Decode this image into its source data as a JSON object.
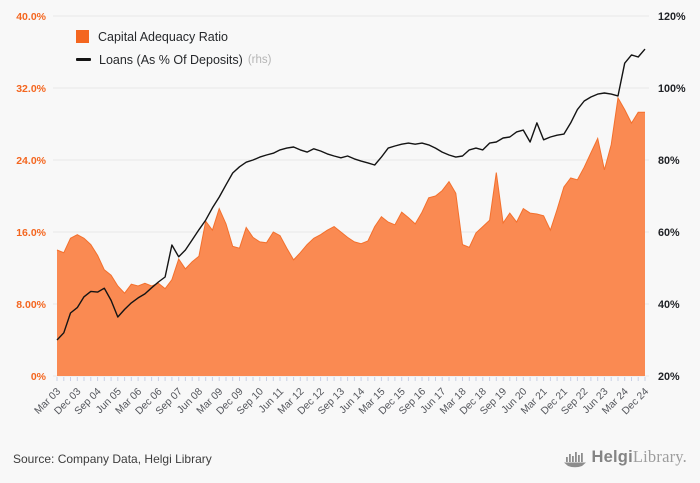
{
  "footer": {
    "source": "Source: Company Data, Helgi Library",
    "logo_bold": "Helgi",
    "logo_light": "Library."
  },
  "chart_data": {
    "type": "combo",
    "title": "",
    "x_label_every": 3,
    "legend_position": "top-left",
    "grid": true,
    "categories": [
      "Mar 03",
      "Jun 03",
      "Sep 03",
      "Dec 03",
      "Mar 04",
      "Jun 04",
      "Sep 04",
      "Dec 04",
      "Mar 05",
      "Jun 05",
      "Sep 05",
      "Dec 05",
      "Mar 06",
      "Jun 06",
      "Sep 06",
      "Dec 06",
      "Mar 07",
      "Jun 07",
      "Sep 07",
      "Dec 07",
      "Mar 08",
      "Jun 08",
      "Sep 08",
      "Dec 08",
      "Mar 09",
      "Jun 09",
      "Sep 09",
      "Dec 09",
      "Mar 10",
      "Jun 10",
      "Sep 10",
      "Dec 10",
      "Mar 11",
      "Jun 11",
      "Sep 11",
      "Dec 11",
      "Mar 12",
      "Jun 12",
      "Sep 12",
      "Dec 12",
      "Mar 13",
      "Jun 13",
      "Sep 13",
      "Dec 13",
      "Mar 14",
      "Jun 14",
      "Sep 14",
      "Dec 14",
      "Mar 15",
      "Jun 15",
      "Sep 15",
      "Dec 15",
      "Mar 16",
      "Jun 16",
      "Sep 16",
      "Dec 16",
      "Mar 17",
      "Jun 17",
      "Sep 17",
      "Dec 17",
      "Mar 18",
      "Jun 18",
      "Sep 18",
      "Dec 18",
      "Mar 19",
      "Jun 19",
      "Sep 19",
      "Dec 19",
      "Mar 20",
      "Jun 20",
      "Sep 20",
      "Dec 20",
      "Mar 21",
      "Jun 21",
      "Sep 21",
      "Dec 21",
      "Mar 22",
      "Jun 22",
      "Sep 22",
      "Dec 22",
      "Mar 23",
      "Jun 23",
      "Sep 23",
      "Dec 23",
      "Mar 24",
      "Jun 24",
      "Sep 24",
      "Dec 24"
    ],
    "series": [
      {
        "name": "Capital Adequacy Ratio",
        "type": "area",
        "axis": "left",
        "color": "#fa8a52",
        "edge_color": "#f3702d",
        "legend_color": "#f4661f",
        "values": [
          14.0,
          13.7,
          15.3,
          15.7,
          15.3,
          14.6,
          13.4,
          11.8,
          11.2,
          10.0,
          9.2,
          10.2,
          10.0,
          10.3,
          10.0,
          10.3,
          9.7,
          10.7,
          13.0,
          11.9,
          12.7,
          13.3,
          17.2,
          16.2,
          18.6,
          16.9,
          14.4,
          14.2,
          16.5,
          15.4,
          14.9,
          14.8,
          16.0,
          15.6,
          14.2,
          12.9,
          13.7,
          14.6,
          15.3,
          15.7,
          16.2,
          16.6,
          16.0,
          15.4,
          14.9,
          14.7,
          15.0,
          16.6,
          17.7,
          17.1,
          16.8,
          18.2,
          17.6,
          16.9,
          18.2,
          19.8,
          20.0,
          20.6,
          21.6,
          20.3,
          14.6,
          14.3,
          15.9,
          16.6,
          17.3,
          22.6,
          17.0,
          18.1,
          17.1,
          18.6,
          18.1,
          18.0,
          17.8,
          16.2,
          18.5,
          21.0,
          22.0,
          21.8,
          23.2,
          24.8,
          26.4,
          22.9,
          25.7,
          30.9,
          29.6,
          28.1,
          29.3,
          29.3
        ]
      },
      {
        "name": "Loans (As % Of Deposits)",
        "legend_suffix": "(rhs)",
        "type": "line",
        "axis": "right",
        "color": "#141414",
        "values": [
          30.0,
          32.0,
          37.5,
          39.0,
          42.0,
          43.5,
          43.3,
          44.4,
          41.0,
          36.4,
          38.5,
          40.3,
          41.7,
          42.8,
          44.5,
          46.1,
          47.5,
          56.4,
          53.1,
          55.0,
          57.8,
          60.6,
          63.3,
          66.7,
          69.7,
          73.1,
          76.4,
          78.1,
          79.4,
          80.0,
          80.8,
          81.4,
          81.9,
          82.8,
          83.3,
          83.6,
          82.8,
          82.2,
          83.1,
          82.5,
          81.7,
          81.1,
          80.6,
          81.1,
          80.3,
          79.7,
          79.2,
          78.6,
          80.8,
          83.3,
          83.9,
          84.4,
          84.7,
          84.4,
          84.7,
          84.2,
          83.3,
          82.2,
          81.4,
          80.8,
          81.1,
          82.8,
          83.3,
          82.8,
          84.7,
          85.0,
          86.1,
          86.4,
          87.8,
          88.3,
          85.0,
          90.3,
          85.6,
          86.4,
          86.9,
          87.2,
          90.3,
          94.0,
          96.4,
          97.5,
          98.3,
          98.6,
          98.3,
          97.8,
          106.9,
          109.2,
          108.6,
          110.8
        ]
      }
    ],
    "left_axis": {
      "min": 0,
      "max": 40,
      "tick_values": [
        0,
        8,
        16,
        24,
        32,
        40
      ],
      "tick_labels": [
        "0%",
        "8.00%",
        "16.0%",
        "24.0%",
        "32.0%",
        "40.0%"
      ],
      "color": "#f4661f"
    },
    "right_axis": {
      "min": 20,
      "max": 120,
      "tick_values": [
        20,
        40,
        60,
        80,
        100,
        120
      ],
      "tick_labels": [
        "20%",
        "40%",
        "60%",
        "80%",
        "100%",
        "120%"
      ],
      "color": "#202226"
    },
    "style": {
      "background": "#f8f8f8",
      "grid_color": "#e7e7e7",
      "tick_color": "#c9cfe4",
      "x_label_color": "#54565c"
    }
  }
}
